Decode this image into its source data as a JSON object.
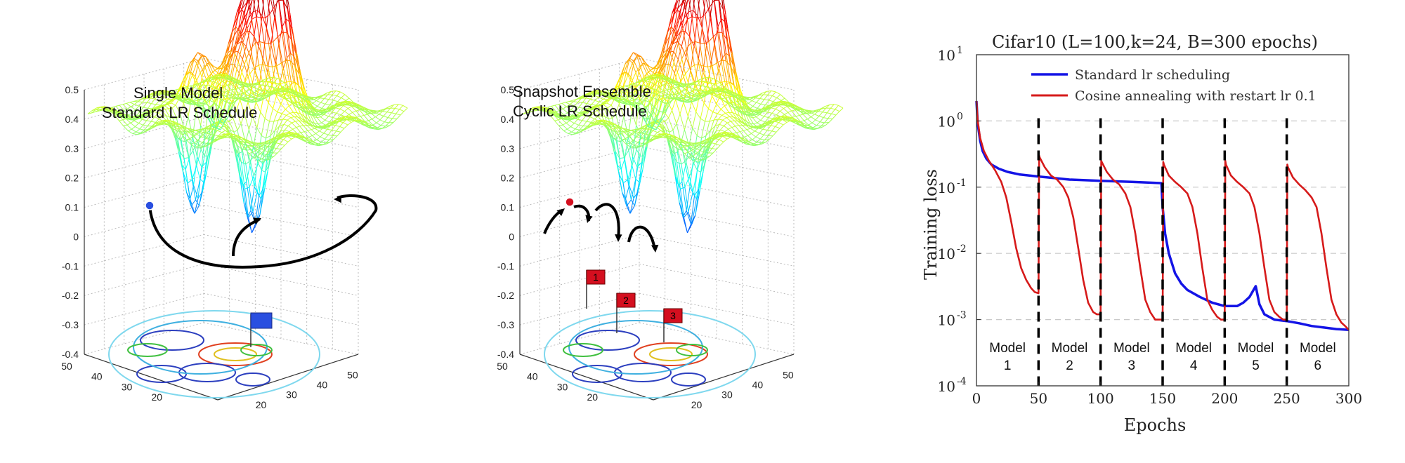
{
  "surface_plots": [
    {
      "title_line1": "Single Model",
      "title_line2": "Standard LR Schedule",
      "z_ticks": [
        "0.5",
        "0.4",
        "0.3",
        "0.2",
        "0.1",
        "0",
        "-0.1",
        "-0.2",
        "-0.3",
        "-0.4"
      ],
      "left_axis_ticks": [
        "50",
        "40",
        "30",
        "20"
      ],
      "right_axis_ticks": [
        "20",
        "30",
        "40",
        "50"
      ],
      "flags": []
    },
    {
      "title_line1": "Snapshot Ensemble",
      "title_line2": "Cyclic LR Schedule",
      "z_ticks": [
        "0.5",
        "0.4",
        "0.3",
        "0.2",
        "0.1",
        "0",
        "-0.1",
        "-0.2",
        "-0.3",
        "-0.4"
      ],
      "left_axis_ticks": [
        "50",
        "40",
        "30",
        "20"
      ],
      "right_axis_ticks": [
        "20",
        "30",
        "40",
        "50"
      ],
      "flags": [
        "1",
        "2",
        "3"
      ]
    }
  ],
  "colors": {
    "standard": "#1414e6",
    "cosine": "#d61a1a",
    "flag_red": "#d40f1f",
    "flag_blue": "#2a4fe0"
  },
  "chart_data": {
    "type": "line",
    "title": "Cifar10 (L=100,k=24, B=300 epochs)",
    "xlabel": "Epochs",
    "ylabel": "Training loss",
    "xlim": [
      0,
      300
    ],
    "ylim": [
      0.0001,
      10
    ],
    "yscale": "log",
    "x_ticks": [
      "0",
      "50",
      "100",
      "150",
      "200",
      "250",
      "300"
    ],
    "y_tick_values": [
      0.0001,
      0.001,
      0.01,
      0.1,
      1,
      10
    ],
    "y_tick_labels": [
      {
        "base": "10",
        "exp": "-4"
      },
      {
        "base": "10",
        "exp": "-3"
      },
      {
        "base": "10",
        "exp": "-2"
      },
      {
        "base": "10",
        "exp": "-1"
      },
      {
        "base": "10",
        "exp": "0"
      },
      {
        "base": "10",
        "exp": "1"
      }
    ],
    "grid": true,
    "legend_position": "top",
    "restart_epochs": [
      50,
      100,
      150,
      200,
      250
    ],
    "model_labels": [
      {
        "word": "Model",
        "num": "1",
        "x": 25
      },
      {
        "word": "Model",
        "num": "2",
        "x": 75
      },
      {
        "word": "Model",
        "num": "3",
        "x": 125
      },
      {
        "word": "Model",
        "num": "4",
        "x": 175
      },
      {
        "word": "Model",
        "num": "5",
        "x": 225
      },
      {
        "word": "Model",
        "num": "6",
        "x": 275
      }
    ],
    "series": [
      {
        "name": "Standard lr scheduling",
        "x": [
          0,
          1,
          3,
          5,
          8,
          12,
          18,
          25,
          35,
          50,
          75,
          100,
          125,
          149,
          150,
          152,
          155,
          160,
          165,
          170,
          180,
          190,
          200,
          210,
          215,
          220,
          225,
          228,
          232,
          240,
          250,
          260,
          270,
          280,
          290,
          300
        ],
        "y": [
          2.0,
          0.9,
          0.5,
          0.35,
          0.27,
          0.22,
          0.19,
          0.17,
          0.155,
          0.145,
          0.13,
          0.125,
          0.12,
          0.115,
          0.05,
          0.02,
          0.01,
          0.005,
          0.0035,
          0.0028,
          0.0022,
          0.0018,
          0.0016,
          0.0016,
          0.0018,
          0.0022,
          0.0032,
          0.0017,
          0.0012,
          0.001,
          0.00095,
          0.00088,
          0.0008,
          0.00076,
          0.00072,
          0.0007
        ]
      },
      {
        "name": "Cosine annealing with restart lr 0.1",
        "x": [
          0,
          1,
          3,
          6,
          10,
          15,
          20,
          24,
          28,
          32,
          36,
          40,
          44,
          47,
          50,
          50.5,
          51,
          55,
          60,
          65,
          70,
          74,
          78,
          82,
          86,
          90,
          94,
          97,
          100,
          100.5,
          101,
          105,
          110,
          115,
          120,
          124,
          128,
          132,
          136,
          140,
          144,
          147,
          150,
          150.5,
          151,
          155,
          160,
          165,
          170,
          174,
          178,
          182,
          186,
          190,
          194,
          197,
          200,
          200.5,
          201,
          205,
          210,
          215,
          220,
          224,
          228,
          232,
          236,
          240,
          244,
          247,
          250,
          250.5,
          251,
          255,
          260,
          265,
          270,
          274,
          278,
          282,
          286,
          290,
          294,
          297,
          300
        ],
        "y": [
          2.0,
          1.0,
          0.55,
          0.35,
          0.25,
          0.18,
          0.12,
          0.07,
          0.03,
          0.012,
          0.006,
          0.004,
          0.003,
          0.0026,
          0.0025,
          0.3,
          0.28,
          0.2,
          0.15,
          0.13,
          0.1,
          0.07,
          0.035,
          0.012,
          0.004,
          0.0018,
          0.0013,
          0.0012,
          0.0012,
          0.25,
          0.24,
          0.17,
          0.13,
          0.11,
          0.08,
          0.05,
          0.02,
          0.006,
          0.002,
          0.0013,
          0.001,
          0.001,
          0.001,
          0.24,
          0.22,
          0.15,
          0.12,
          0.1,
          0.08,
          0.05,
          0.02,
          0.006,
          0.002,
          0.0014,
          0.0011,
          0.001,
          0.001,
          0.25,
          0.22,
          0.15,
          0.12,
          0.1,
          0.08,
          0.05,
          0.02,
          0.006,
          0.002,
          0.0013,
          0.0011,
          0.001,
          0.001,
          0.22,
          0.2,
          0.14,
          0.11,
          0.09,
          0.07,
          0.05,
          0.02,
          0.006,
          0.002,
          0.0012,
          0.0009,
          0.0008,
          0.0007
        ]
      }
    ]
  }
}
